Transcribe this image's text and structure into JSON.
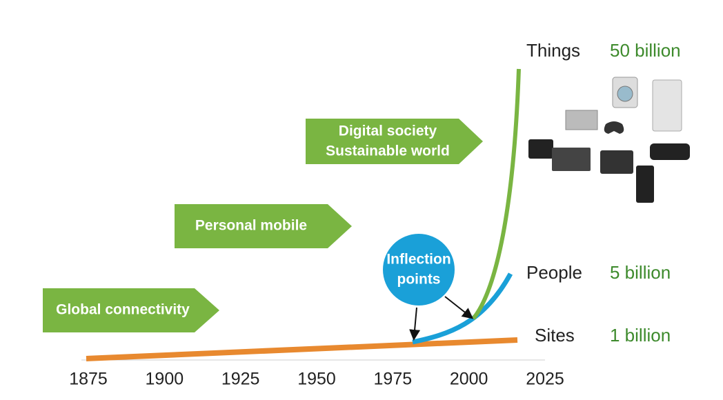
{
  "banners": [
    {
      "lines": [
        "Global connectivity"
      ]
    },
    {
      "lines": [
        "Personal mobile"
      ]
    },
    {
      "lines": [
        "Digital society",
        "Sustainable world"
      ]
    }
  ],
  "callout": {
    "lines": [
      "Inflection",
      "points"
    ]
  },
  "series_labels": [
    {
      "name": "Things",
      "count": "50 billion"
    },
    {
      "name": "People",
      "count": "5 billion"
    },
    {
      "name": "Sites",
      "count": "1 billion"
    }
  ],
  "x_axis": {
    "xlim": [
      1875,
      2025
    ],
    "xticks": [
      1875,
      1900,
      1925,
      1950,
      1975,
      2000,
      2025
    ]
  }
}
